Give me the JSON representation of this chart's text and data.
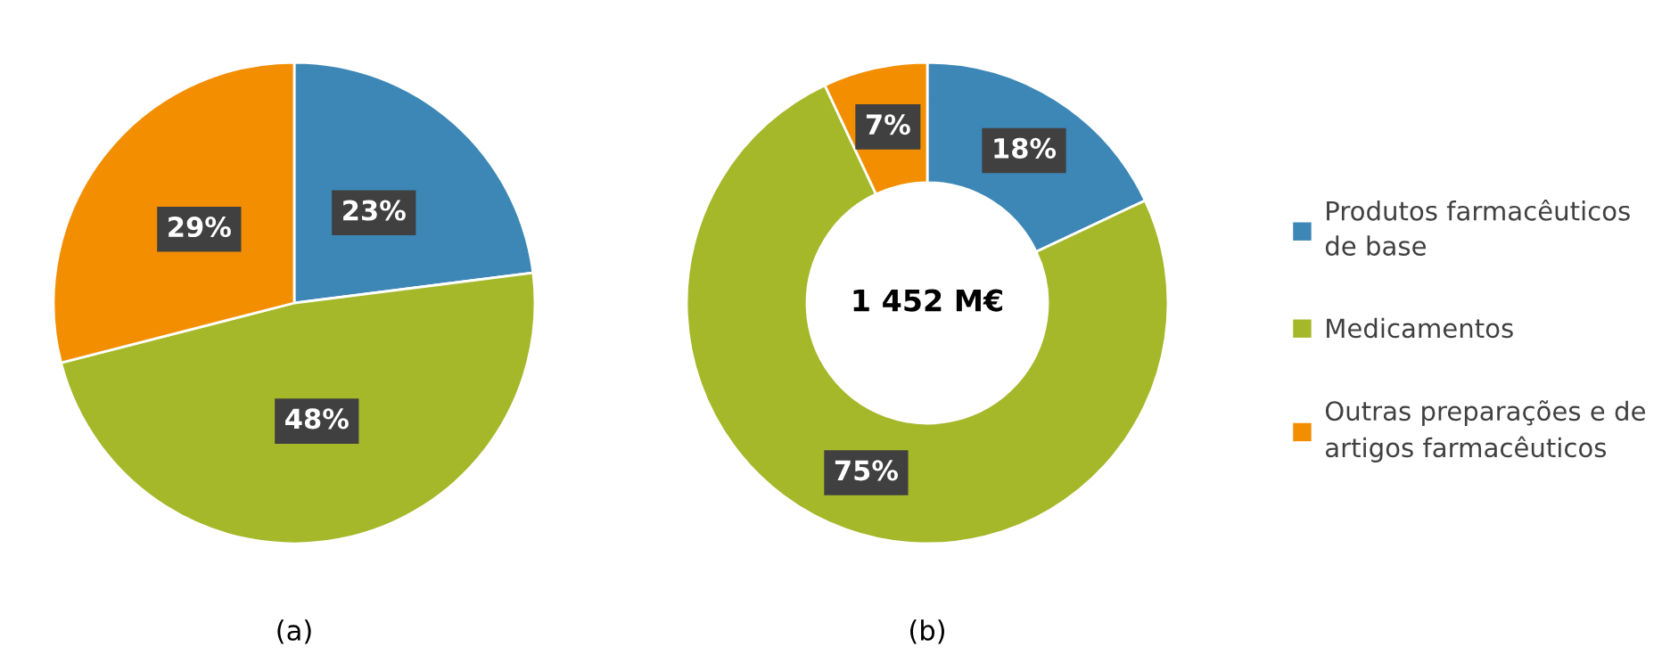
{
  "chart_data": [
    {
      "type": "pie",
      "title": "(a)",
      "categories": [
        "Produtos farmacêuticos de base",
        "Medicamentos",
        "Outras preparações e de artigos farmacêuticos"
      ],
      "values": [
        23,
        48,
        29
      ],
      "colors": [
        "#3d87b6",
        "#a5b82a",
        "#f28e00"
      ],
      "value_labels": [
        "23%",
        "48%",
        "29%"
      ],
      "legend": "right"
    },
    {
      "type": "donut",
      "title": "(b)",
      "categories": [
        null,
        null,
        null
      ],
      "values": [
        18,
        75,
        7
      ],
      "colors": [
        "#3d87b6",
        "#a5b82a",
        "#f28e00"
      ],
      "value_labels": [
        "18%",
        "75%",
        "7%"
      ],
      "annotations": [
        "1 452 M€"
      ]
    }
  ]
}
